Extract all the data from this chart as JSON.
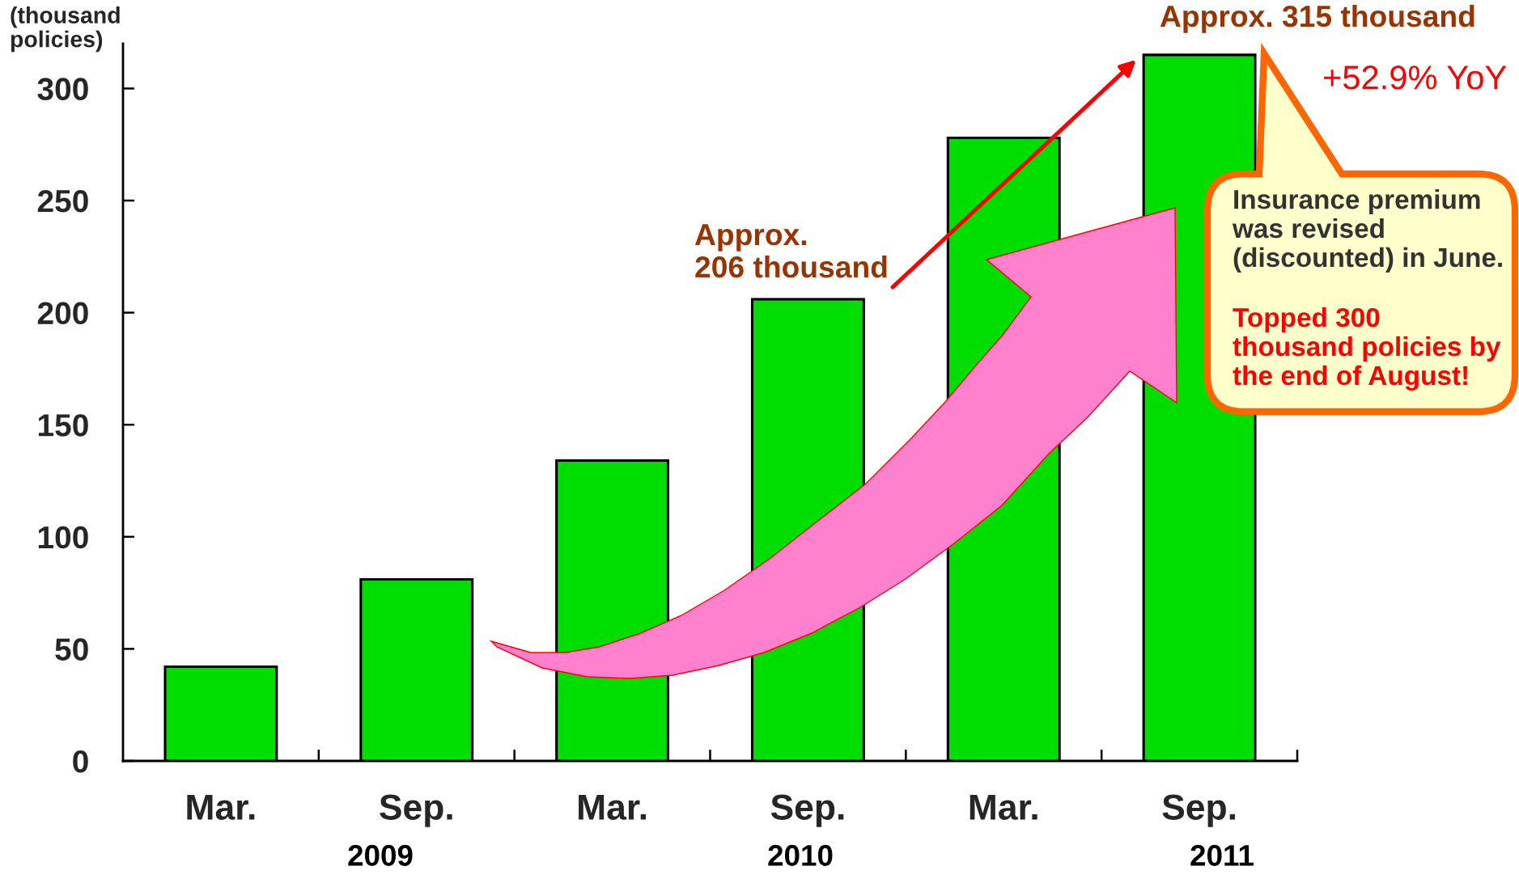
{
  "chart_data": {
    "type": "bar",
    "ylabel": "(thousand\npolicies)",
    "categories": [
      "Mar.",
      "Sep.",
      "Mar.",
      "Sep.",
      "Mar.",
      "Sep."
    ],
    "values": [
      42,
      81,
      134,
      206,
      278,
      315
    ],
    "color": "#00dd00",
    "ylim": [
      0,
      320
    ],
    "yticks": [
      0,
      50,
      100,
      150,
      200,
      250,
      300
    ],
    "annotations": [
      "Approx.\n206 thousand",
      "Approx. 315 thousand",
      "+52.9% YoY",
      "Insurance premium\nwas revised\n(discounted) in June.",
      "Topped 300\nthousand policies by\nthe end of August!",
      "2009",
      "2010",
      "2011"
    ]
  }
}
